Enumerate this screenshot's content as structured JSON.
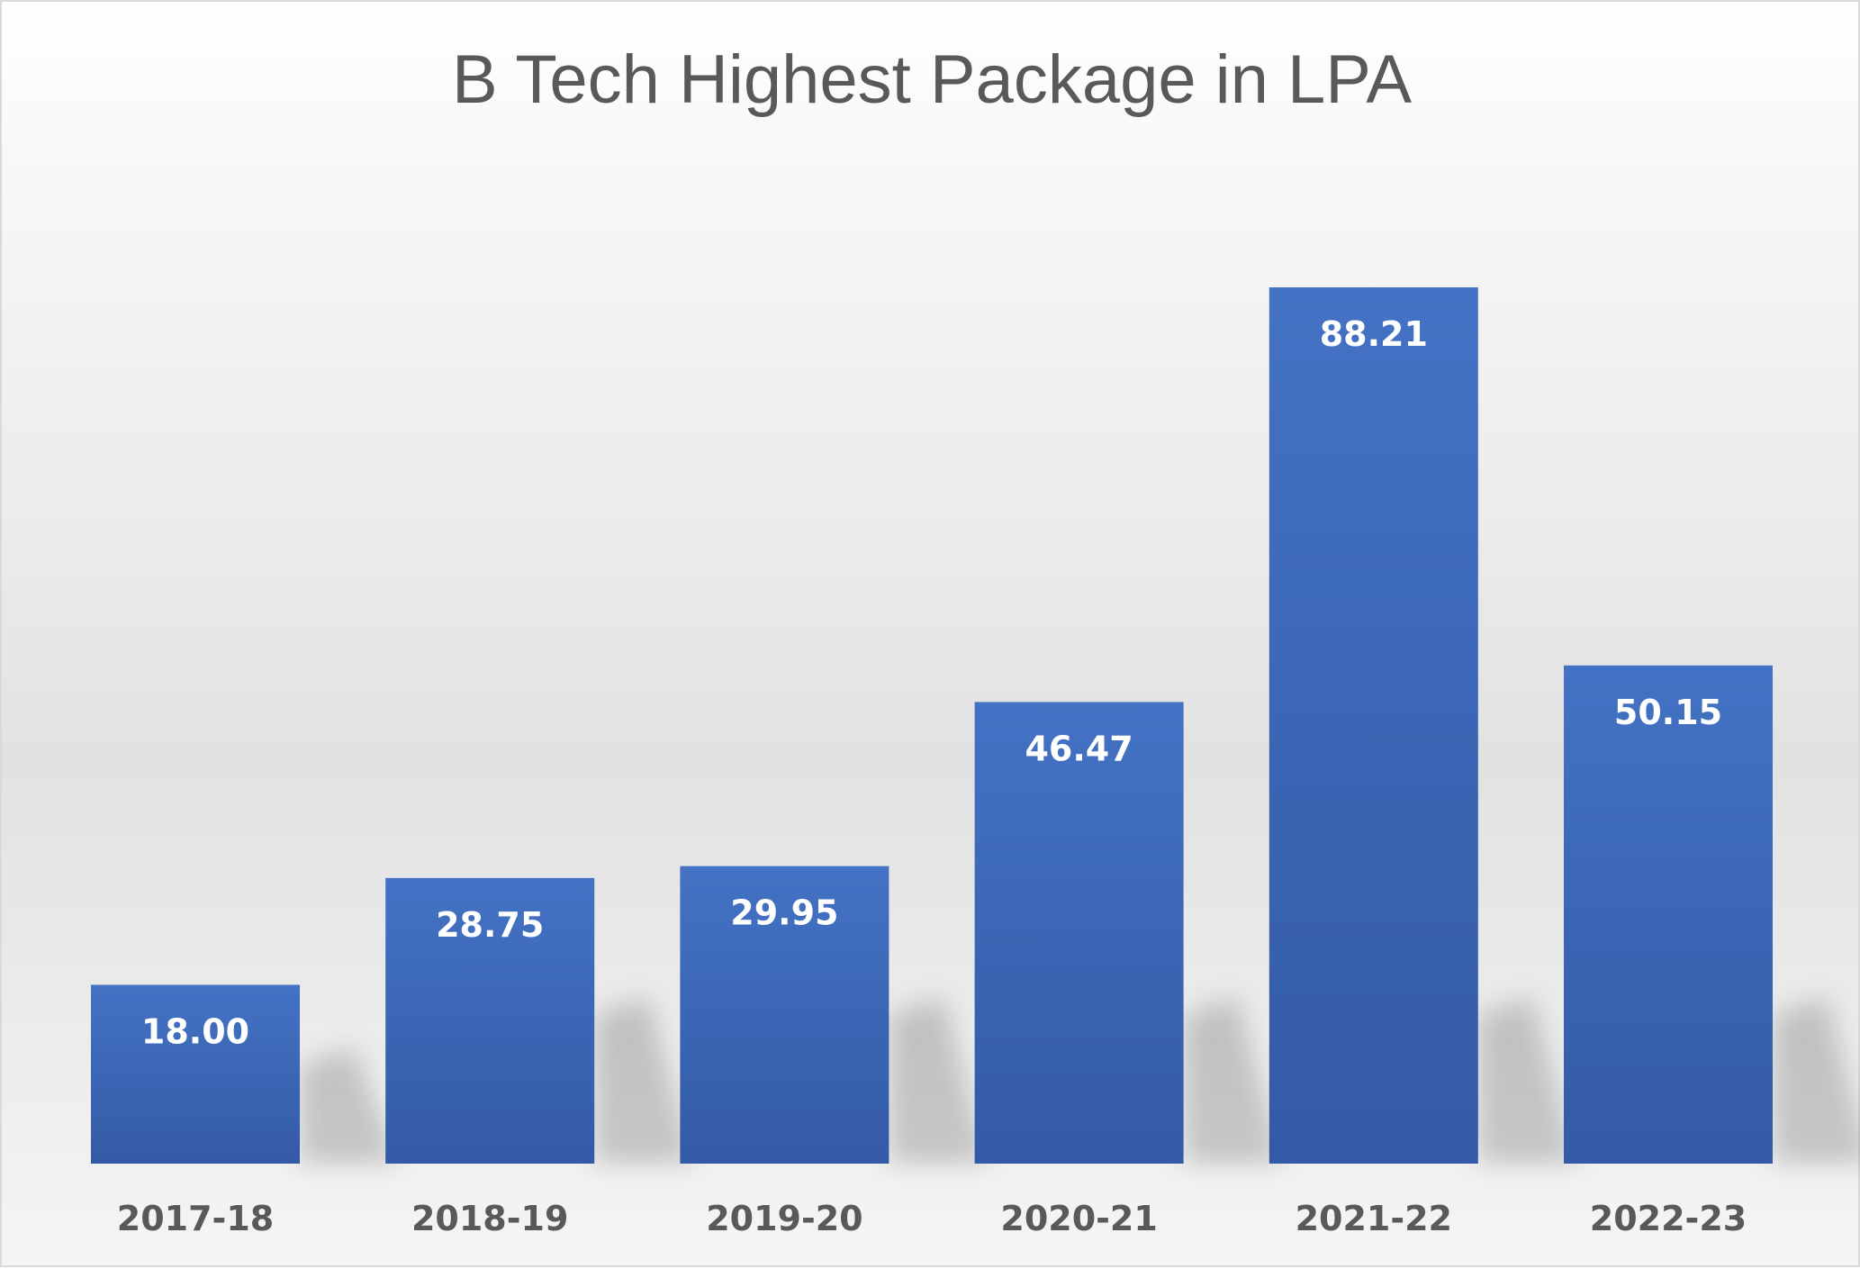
{
  "chart_data": {
    "type": "bar",
    "title": "B Tech Highest Package in LPA",
    "categories": [
      "2017-18",
      "2018-19",
      "2019-20",
      "2020-21",
      "2021-22",
      "2022-23"
    ],
    "values": [
      18.0,
      28.75,
      29.95,
      46.47,
      88.21,
      50.15
    ],
    "value_labels": [
      "18.00",
      "28.75",
      "29.95",
      "46.47",
      "88.21",
      "50.15"
    ],
    "xlabel": "",
    "ylabel": "",
    "ylim": [
      0,
      100
    ],
    "grid": false,
    "legend": "none",
    "bar_color": "#4472c4",
    "bar_color_dark": "#335aa6"
  }
}
